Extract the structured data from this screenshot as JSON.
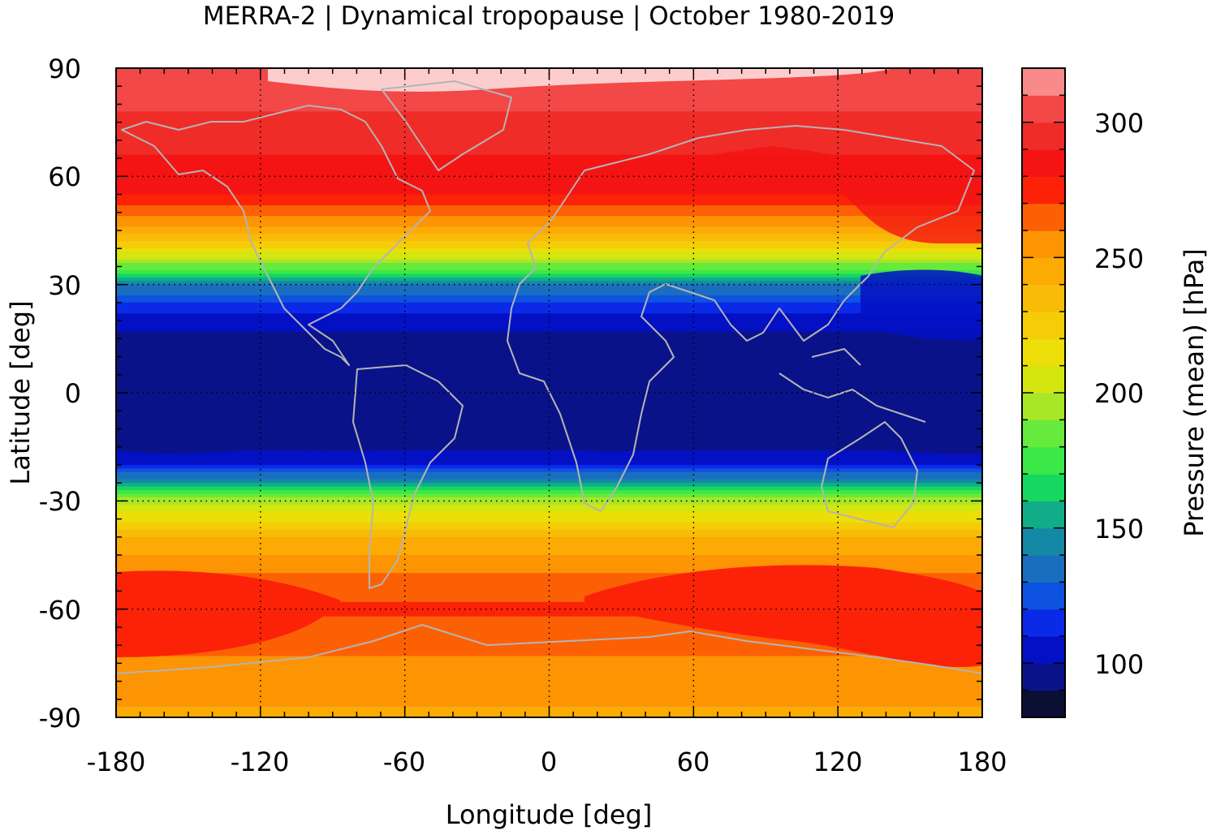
{
  "chart_data": {
    "type": "heatmap",
    "title": "MERRA-2 | Dynamical tropopause | October 1980-2019",
    "xlabel": "Longitude [deg]",
    "ylabel": "Latitude [deg]",
    "xlim": [
      -180,
      180
    ],
    "ylim": [
      -90,
      90
    ],
    "x_ticks": [
      "-180",
      "-120",
      "-60",
      "0",
      "60",
      "120",
      "180"
    ],
    "y_ticks": [
      "90",
      "60",
      "30",
      "0",
      "-30",
      "-60",
      "-90"
    ],
    "grid": true,
    "coastlines": true,
    "coastline_color": "#b4b4b4",
    "colorbar": {
      "label": "Pressure (mean) [hPa]",
      "range": [
        80,
        320
      ],
      "tick_labels": [
        "300",
        "250",
        "200",
        "150",
        "100"
      ],
      "levels": [
        80,
        90,
        100,
        110,
        120,
        130,
        140,
        150,
        160,
        170,
        180,
        190,
        200,
        210,
        220,
        230,
        240,
        250,
        260,
        270,
        280,
        290,
        300,
        310,
        320
      ],
      "colors": [
        "#0b0f33",
        "#0a128a",
        "#0410c4",
        "#0a2ae8",
        "#0d52e0",
        "#1a6ec0",
        "#1389a6",
        "#10ad88",
        "#16d860",
        "#3be848",
        "#66ea3c",
        "#a8e628",
        "#d4e610",
        "#ecde08",
        "#f4cc08",
        "#f8bc08",
        "#fcaa04",
        "#fc9404",
        "#fc6004",
        "#fc2208",
        "#f41414",
        "#f02c28",
        "#f24848",
        "#f88a8a",
        "#fdcdcd"
      ]
    },
    "latitude_profile": {
      "lat": [
        -90,
        -80,
        -70,
        -60,
        -50,
        -40,
        -30,
        -25,
        -20,
        -15,
        -10,
        -5,
        0,
        5,
        10,
        15,
        20,
        25,
        30,
        35,
        40,
        45,
        50,
        55,
        60,
        70,
        80,
        90
      ],
      "mean_pressure_hPa": [
        248,
        255,
        262,
        272,
        260,
        240,
        195,
        150,
        110,
        98,
        94,
        92,
        92,
        92,
        93,
        96,
        105,
        120,
        140,
        185,
        220,
        245,
        265,
        280,
        285,
        293,
        302,
        310
      ]
    }
  }
}
